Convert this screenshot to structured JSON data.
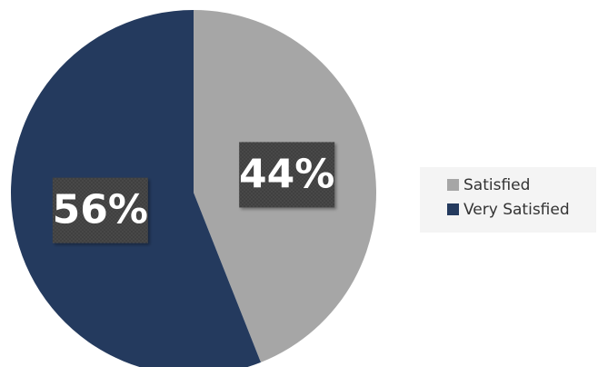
{
  "chart_data": {
    "type": "pie",
    "title": "",
    "slices": [
      {
        "name": "Satisfied",
        "value": 44,
        "label": "44%",
        "color": "#a6a6a6"
      },
      {
        "name": "Very Satisfied",
        "value": 56,
        "label": "56%",
        "color": "#243a5e"
      }
    ],
    "start": "top",
    "direction": "clockwise",
    "legend_position": "right",
    "label_style": {
      "box_color": "#404040",
      "text_color": "#ffffff"
    }
  }
}
